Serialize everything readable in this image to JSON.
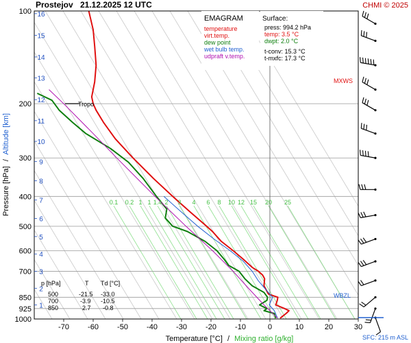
{
  "header": {
    "station": "Prostejov",
    "datetime": "21.12.2025 12 UTC",
    "credit": "CHMI © 2025"
  },
  "legend": {
    "title": "EMAGRAM",
    "items": [
      {
        "label": "temperature",
        "color": "#e01010"
      },
      {
        "label": "virt.temp.",
        "color": "#e01010"
      },
      {
        "label": "dew point",
        "color": "#108010"
      },
      {
        "label": "wet bulb temp.",
        "color": "#2060d0"
      },
      {
        "label": "udpraft v.temp.",
        "color": "#b010b0"
      }
    ]
  },
  "surface": {
    "title": "Surface:",
    "press": "press: 994.2 hPa",
    "temp": "temp: 3.5 °C",
    "dwpt": "dwpt: 2.0 °C",
    "tconv": "t-conv: 15.3 °C",
    "tmxfc": "t-mxfc: 17.3 °C"
  },
  "levels_table": {
    "headers": [
      "p [hPa]",
      "T",
      "Td [°C]"
    ],
    "rows": [
      [
        "500",
        "-21.5",
        "-33.0"
      ],
      [
        "700",
        "-3.9",
        "-10.5"
      ],
      [
        "850",
        "2.7",
        "-0.8"
      ]
    ]
  },
  "annotations": {
    "tropo": "Tropo",
    "mxws": "MXWS",
    "wbzl": "WBZL",
    "sfc": "SFC: 215 m ASL"
  },
  "axes": {
    "ylabel_pressure": "Pressure [hPa]",
    "ylabel_sep": "/",
    "ylabel_altitude": "Altitude [km]",
    "xlabel_temp": "Temperature [°C]",
    "xlabel_sep": "/",
    "xlabel_mix": "Mixing ratio [g/kg]"
  },
  "chart_data": {
    "type": "line",
    "xlim": [
      -80,
      30
    ],
    "ylim": [
      1000,
      100
    ],
    "yscale": "log",
    "x_ticks": [
      -70,
      -60,
      -50,
      -40,
      -30,
      -20,
      -10,
      0,
      10,
      20,
      30
    ],
    "pressure_ticks": [
      100,
      200,
      300,
      400,
      500,
      600,
      700,
      850,
      925,
      1000
    ],
    "altitude_ticks": [
      {
        "km": "1",
        "p": 900
      },
      {
        "km": "2",
        "p": 795
      },
      {
        "km": "3",
        "p": 700
      },
      {
        "km": "4",
        "p": 615
      },
      {
        "km": "5",
        "p": 540
      },
      {
        "km": "6",
        "p": 472
      },
      {
        "km": "7",
        "p": 411
      },
      {
        "km": "8",
        "p": 356
      },
      {
        "km": "9",
        "p": 308
      },
      {
        "km": "10",
        "p": 265
      },
      {
        "km": "11",
        "p": 227
      },
      {
        "km": "12",
        "p": 194
      },
      {
        "km": "13",
        "p": 165
      },
      {
        "km": "14",
        "p": 141
      },
      {
        "km": "15",
        "p": 120
      },
      {
        "km": "16",
        "p": 102
      }
    ],
    "mixing_ratio_labels": [
      "0.1",
      "0.2",
      "1",
      "1",
      "1.4",
      "2",
      "3",
      "4",
      "6",
      "8",
      "10",
      "12",
      "15",
      "20",
      "25"
    ],
    "series": [
      {
        "name": "temperature",
        "color": "#e01010",
        "points": [
          [
            994,
            3.5
          ],
          [
            960,
            5.5
          ],
          [
            940,
            6.5
          ],
          [
            925,
            5.0
          ],
          [
            900,
            2.0
          ],
          [
            870,
            2.5
          ],
          [
            850,
            2.7
          ],
          [
            830,
            -0.5
          ],
          [
            780,
            -2.0
          ],
          [
            740,
            -1.8
          ],
          [
            720,
            -2.5
          ],
          [
            700,
            -3.9
          ],
          [
            680,
            -6.0
          ],
          [
            640,
            -9.0
          ],
          [
            600,
            -12.5
          ],
          [
            560,
            -16.5
          ],
          [
            520,
            -19.5
          ],
          [
            500,
            -21.5
          ],
          [
            450,
            -27.0
          ],
          [
            400,
            -33.0
          ],
          [
            350,
            -39.5
          ],
          [
            300,
            -46.5
          ],
          [
            260,
            -52.5
          ],
          [
            230,
            -56.5
          ],
          [
            210,
            -59.0
          ],
          [
            200,
            -60.0
          ],
          [
            190,
            -60.5
          ],
          [
            170,
            -59.5
          ],
          [
            150,
            -59.0
          ],
          [
            130,
            -59.5
          ],
          [
            115,
            -60.0
          ],
          [
            100,
            -61.5
          ]
        ]
      },
      {
        "name": "dew point",
        "color": "#108010",
        "points": [
          [
            994,
            2.0
          ],
          [
            960,
            1.5
          ],
          [
            940,
            -2.0
          ],
          [
            925,
            -1.0
          ],
          [
            900,
            -3.5
          ],
          [
            870,
            -1.0
          ],
          [
            850,
            -0.8
          ],
          [
            820,
            -2.0
          ],
          [
            780,
            -6.0
          ],
          [
            740,
            -8.5
          ],
          [
            700,
            -10.5
          ],
          [
            670,
            -14.0
          ],
          [
            640,
            -15.5
          ],
          [
            600,
            -18.0
          ],
          [
            560,
            -22.0
          ],
          [
            520,
            -28.0
          ],
          [
            500,
            -33.0
          ],
          [
            470,
            -35.5
          ],
          [
            440,
            -35.0
          ],
          [
            400,
            -38.5
          ],
          [
            350,
            -43.0
          ],
          [
            310,
            -48.0
          ],
          [
            280,
            -54.0
          ],
          [
            250,
            -62.5
          ],
          [
            230,
            -67.0
          ],
          [
            210,
            -71.5
          ],
          [
            195,
            -74.0
          ],
          [
            185,
            -79.0
          ]
        ]
      },
      {
        "name": "wet bulb temp.",
        "color": "#2060d0",
        "points": [
          [
            994,
            2.6
          ],
          [
            940,
            1.5
          ],
          [
            900,
            -0.2
          ],
          [
            850,
            0.9
          ],
          [
            800,
            -1.5
          ],
          [
            750,
            -4.0
          ],
          [
            700,
            -6.0
          ],
          [
            650,
            -9.0
          ],
          [
            600,
            -13.5
          ],
          [
            550,
            -19.0
          ],
          [
            500,
            -24.5
          ],
          [
            450,
            -30.0
          ],
          [
            400,
            -36.0
          ]
        ]
      },
      {
        "name": "udpraft v.temp.",
        "color": "#b010b0",
        "points": [
          [
            994,
            2.6
          ],
          [
            900,
            -2.0
          ],
          [
            800,
            -7.0
          ],
          [
            700,
            -12.5
          ],
          [
            600,
            -19.5
          ],
          [
            500,
            -28.5
          ],
          [
            400,
            -39.0
          ],
          [
            300,
            -52.0
          ],
          [
            250,
            -60.0
          ],
          [
            200,
            -70.0
          ],
          [
            180,
            -75.0
          ]
        ]
      }
    ],
    "wind_barbs": [
      {
        "p": 990,
        "dir": 160,
        "speed_kt": 10
      },
      {
        "p": 925,
        "dir": 200,
        "speed_kt": 15
      },
      {
        "p": 850,
        "dir": 230,
        "speed_kt": 20
      },
      {
        "p": 750,
        "dir": 250,
        "speed_kt": 20
      },
      {
        "p": 650,
        "dir": 250,
        "speed_kt": 25
      },
      {
        "p": 550,
        "dir": 250,
        "speed_kt": 25
      },
      {
        "p": 460,
        "dir": 260,
        "speed_kt": 30
      },
      {
        "p": 380,
        "dir": 270,
        "speed_kt": 30
      },
      {
        "p": 300,
        "dir": 280,
        "speed_kt": 35
      },
      {
        "p": 250,
        "dir": 290,
        "speed_kt": 30
      },
      {
        "p": 210,
        "dir": 300,
        "speed_kt": 30
      },
      {
        "p": 180,
        "dir": 300,
        "speed_kt": 25
      },
      {
        "p": 150,
        "dir": 280,
        "speed_kt": 55
      },
      {
        "p": 125,
        "dir": 290,
        "speed_kt": 30
      },
      {
        "p": 110,
        "dir": 300,
        "speed_kt": 25
      }
    ]
  }
}
